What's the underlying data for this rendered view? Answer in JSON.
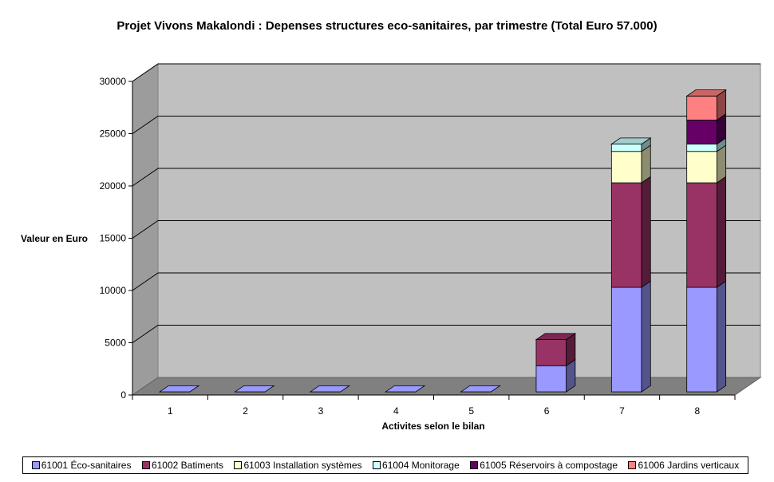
{
  "chart_data": {
    "type": "bar",
    "stacked": true,
    "style": "3d",
    "title": "Projet Vivons Makalondi : Depenses structures eco-sanitaires, par trimestre (Total Euro 57.000)",
    "xlabel": "Activites selon le bilan",
    "ylabel": "Valeur en Euro",
    "ylim": [
      0,
      30000
    ],
    "yticks": [
      "0",
      "5000",
      "10000",
      "15000",
      "20000",
      "25000",
      "30000"
    ],
    "categories": [
      "1",
      "2",
      "3",
      "4",
      "5",
      "6",
      "7",
      "8"
    ],
    "grid": true,
    "legend_position": "bottom",
    "series": [
      {
        "name": "61001 Éco-sanitaires",
        "color": "#9999ff",
        "values": [
          0,
          0,
          0,
          0,
          0,
          2500,
          10000,
          10000
        ]
      },
      {
        "name": "61002 Batiments",
        "color": "#993366",
        "values": [
          0,
          0,
          0,
          0,
          0,
          2500,
          10000,
          10000
        ]
      },
      {
        "name": "61003 Installation systèmes",
        "color": "#ffffcc",
        "values": [
          0,
          0,
          0,
          0,
          0,
          0,
          3000,
          3000
        ]
      },
      {
        "name": "61004 Monitorage",
        "color": "#ccffff",
        "values": [
          0,
          0,
          0,
          0,
          0,
          0,
          700,
          700
        ]
      },
      {
        "name": "61005 Réservoirs à compostage",
        "color": "#660066",
        "values": [
          0,
          0,
          0,
          0,
          0,
          0,
          0,
          2300
        ]
      },
      {
        "name": "61006 Jardins verticaux",
        "color": "#ff8080",
        "values": [
          0,
          0,
          0,
          0,
          0,
          0,
          0,
          2300
        ]
      }
    ]
  }
}
